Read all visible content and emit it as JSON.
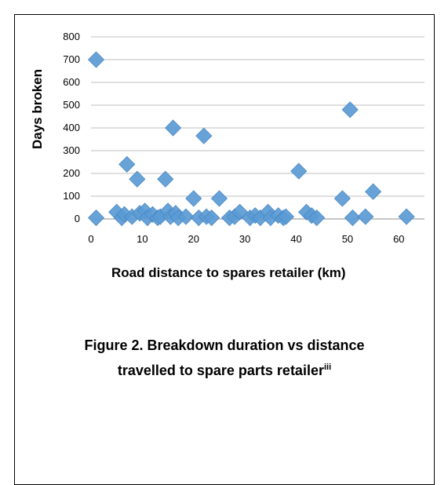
{
  "chart_data": {
    "type": "scatter",
    "title": "",
    "xlabel": "Road distance to spares retailer (km)",
    "ylabel": "Days broken",
    "xlim": [
      0,
      65
    ],
    "ylim": [
      0,
      800
    ],
    "xticks": [
      0,
      10,
      20,
      30,
      40,
      50,
      60
    ],
    "yticks": [
      0,
      100,
      200,
      300,
      400,
      500,
      600,
      700,
      800
    ],
    "grid": "horizontal",
    "marker_color": "#5b9bd5",
    "series": [
      {
        "points": [
          {
            "x": 1,
            "y": 700
          },
          {
            "x": 1,
            "y": 5
          },
          {
            "x": 5,
            "y": 30
          },
          {
            "x": 6,
            "y": 5
          },
          {
            "x": 6.5,
            "y": 20
          },
          {
            "x": 7,
            "y": 240
          },
          {
            "x": 8,
            "y": 10
          },
          {
            "x": 9,
            "y": 175
          },
          {
            "x": 9.5,
            "y": 25
          },
          {
            "x": 10.5,
            "y": 35
          },
          {
            "x": 11,
            "y": 5
          },
          {
            "x": 12,
            "y": 20
          },
          {
            "x": 13,
            "y": 5
          },
          {
            "x": 13.5,
            "y": 10
          },
          {
            "x": 14.5,
            "y": 175
          },
          {
            "x": 15,
            "y": 35
          },
          {
            "x": 15.5,
            "y": 10
          },
          {
            "x": 16,
            "y": 400
          },
          {
            "x": 16.5,
            "y": 25
          },
          {
            "x": 17,
            "y": 5
          },
          {
            "x": 18.5,
            "y": 10
          },
          {
            "x": 20,
            "y": 90
          },
          {
            "x": 21,
            "y": 5
          },
          {
            "x": 22,
            "y": 365
          },
          {
            "x": 22.5,
            "y": 10
          },
          {
            "x": 23.5,
            "y": 5
          },
          {
            "x": 25,
            "y": 90
          },
          {
            "x": 27,
            "y": 5
          },
          {
            "x": 28,
            "y": 10
          },
          {
            "x": 29,
            "y": 30
          },
          {
            "x": 31,
            "y": 5
          },
          {
            "x": 32,
            "y": 15
          },
          {
            "x": 33,
            "y": 5
          },
          {
            "x": 34.5,
            "y": 30
          },
          {
            "x": 35,
            "y": 5
          },
          {
            "x": 36.5,
            "y": 15
          },
          {
            "x": 37.5,
            "y": 5
          },
          {
            "x": 38,
            "y": 10
          },
          {
            "x": 40.5,
            "y": 210
          },
          {
            "x": 42,
            "y": 30
          },
          {
            "x": 43,
            "y": 15
          },
          {
            "x": 44,
            "y": 5
          },
          {
            "x": 49,
            "y": 90
          },
          {
            "x": 50.5,
            "y": 480
          },
          {
            "x": 51,
            "y": 5
          },
          {
            "x": 53.5,
            "y": 10
          },
          {
            "x": 55,
            "y": 120
          },
          {
            "x": 61.5,
            "y": 10
          }
        ]
      }
    ]
  },
  "figure_caption": {
    "line1": "Figure 2. Breakdown duration vs distance",
    "line2": "travelled to spare parts retailer",
    "superscript": "iii"
  }
}
